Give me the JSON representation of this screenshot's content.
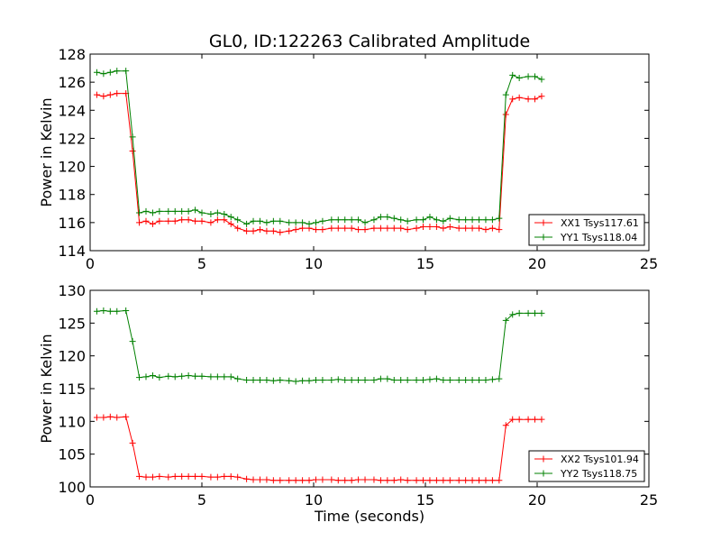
{
  "figure": {
    "title": "GL0, ID:122263 Calibrated Amplitude",
    "xlabel": "Time (seconds)"
  },
  "colors": {
    "xx": "#ff0000",
    "yy": "#008000"
  },
  "chart_data": [
    {
      "type": "line",
      "title": "GL0, ID:122263 Calibrated Amplitude",
      "xlabel": "",
      "ylabel": "Power in Kelvin",
      "xlim": [
        0,
        25
      ],
      "ylim": [
        114,
        128
      ],
      "xticks": [
        0,
        5,
        10,
        15,
        20,
        25
      ],
      "yticks": [
        114,
        116,
        118,
        120,
        122,
        124,
        126,
        128
      ],
      "grid": false,
      "legend_position": "lower-right",
      "x": [
        0.3,
        0.6,
        0.9,
        1.2,
        1.6,
        1.9,
        2.2,
        2.5,
        2.8,
        3.1,
        3.5,
        3.8,
        4.1,
        4.4,
        4.7,
        5.0,
        5.4,
        5.7,
        6.0,
        6.3,
        6.6,
        7.0,
        7.3,
        7.6,
        7.9,
        8.2,
        8.5,
        8.9,
        9.2,
        9.5,
        9.8,
        10.1,
        10.4,
        10.8,
        11.1,
        11.4,
        11.7,
        12.0,
        12.3,
        12.7,
        13.0,
        13.3,
        13.6,
        13.9,
        14.2,
        14.6,
        14.9,
        15.2,
        15.5,
        15.8,
        16.1,
        16.5,
        16.8,
        17.1,
        17.4,
        17.7,
        18.0,
        18.3,
        18.6,
        18.9,
        19.2,
        19.6,
        19.9,
        20.2
      ],
      "series": [
        {
          "name": "XX1 Tsys117.61",
          "color": "#ff0000",
          "values": [
            125.1,
            125.0,
            125.1,
            125.2,
            125.2,
            121.1,
            116.0,
            116.1,
            115.9,
            116.1,
            116.1,
            116.1,
            116.2,
            116.2,
            116.1,
            116.1,
            116.0,
            116.2,
            116.2,
            115.9,
            115.6,
            115.4,
            115.4,
            115.5,
            115.4,
            115.4,
            115.3,
            115.4,
            115.5,
            115.6,
            115.6,
            115.5,
            115.5,
            115.6,
            115.6,
            115.6,
            115.6,
            115.5,
            115.5,
            115.6,
            115.6,
            115.6,
            115.6,
            115.6,
            115.5,
            115.6,
            115.7,
            115.7,
            115.7,
            115.6,
            115.7,
            115.6,
            115.6,
            115.6,
            115.6,
            115.5,
            115.6,
            115.5,
            123.7,
            124.8,
            124.9,
            124.8,
            124.8,
            125.0
          ]
        },
        {
          "name": "YY1 Tsys118.04",
          "color": "#008000",
          "values": [
            126.7,
            126.6,
            126.7,
            126.8,
            126.8,
            122.1,
            116.7,
            116.8,
            116.7,
            116.8,
            116.8,
            116.8,
            116.8,
            116.8,
            116.9,
            116.7,
            116.6,
            116.7,
            116.6,
            116.4,
            116.2,
            115.9,
            116.1,
            116.1,
            116.0,
            116.1,
            116.1,
            116.0,
            116.0,
            116.0,
            115.9,
            116.0,
            116.1,
            116.2,
            116.2,
            116.2,
            116.2,
            116.2,
            116.0,
            116.2,
            116.4,
            116.4,
            116.3,
            116.2,
            116.1,
            116.2,
            116.2,
            116.4,
            116.2,
            116.1,
            116.3,
            116.2,
            116.2,
            116.2,
            116.2,
            116.2,
            116.2,
            116.3,
            125.1,
            126.5,
            126.3,
            126.4,
            126.4,
            126.2
          ]
        }
      ]
    },
    {
      "type": "line",
      "title": "",
      "xlabel": "Time (seconds)",
      "ylabel": "Power in Kelvin",
      "xlim": [
        0,
        25
      ],
      "ylim": [
        100,
        130
      ],
      "xticks": [
        0,
        5,
        10,
        15,
        20,
        25
      ],
      "yticks": [
        100,
        105,
        110,
        115,
        120,
        125,
        130
      ],
      "grid": false,
      "legend_position": "lower-right",
      "x": [
        0.3,
        0.6,
        0.9,
        1.2,
        1.6,
        1.9,
        2.2,
        2.5,
        2.8,
        3.1,
        3.5,
        3.8,
        4.1,
        4.4,
        4.7,
        5.0,
        5.4,
        5.7,
        6.0,
        6.3,
        6.6,
        7.0,
        7.3,
        7.6,
        7.9,
        8.2,
        8.5,
        8.9,
        9.2,
        9.5,
        9.8,
        10.1,
        10.4,
        10.8,
        11.1,
        11.4,
        11.7,
        12.0,
        12.3,
        12.7,
        13.0,
        13.3,
        13.6,
        13.9,
        14.2,
        14.6,
        14.9,
        15.2,
        15.5,
        15.8,
        16.1,
        16.5,
        16.8,
        17.1,
        17.4,
        17.7,
        18.0,
        18.3,
        18.6,
        18.9,
        19.2,
        19.6,
        19.9,
        20.2
      ],
      "series": [
        {
          "name": "XX2 Tsys101.94",
          "color": "#ff0000",
          "values": [
            110.6,
            110.6,
            110.7,
            110.6,
            110.7,
            106.7,
            101.6,
            101.5,
            101.5,
            101.6,
            101.5,
            101.6,
            101.6,
            101.6,
            101.6,
            101.6,
            101.5,
            101.5,
            101.6,
            101.6,
            101.5,
            101.2,
            101.1,
            101.1,
            101.1,
            101.0,
            101.0,
            101.0,
            101.0,
            101.0,
            101.0,
            101.1,
            101.1,
            101.1,
            101.0,
            101.0,
            101.0,
            101.1,
            101.1,
            101.1,
            101.0,
            101.0,
            101.0,
            101.1,
            101.0,
            101.0,
            101.0,
            101.0,
            101.0,
            101.0,
            101.0,
            101.0,
            101.0,
            101.0,
            101.0,
            101.0,
            101.0,
            101.0,
            109.4,
            110.3,
            110.3,
            110.3,
            110.3,
            110.3
          ]
        },
        {
          "name": "YY2 Tsys118.75",
          "color": "#008000",
          "values": [
            126.8,
            126.9,
            126.8,
            126.8,
            126.9,
            122.2,
            116.7,
            116.8,
            117.0,
            116.7,
            116.9,
            116.8,
            116.9,
            117.0,
            116.9,
            116.9,
            116.8,
            116.8,
            116.8,
            116.8,
            116.5,
            116.3,
            116.3,
            116.3,
            116.3,
            116.2,
            116.3,
            116.2,
            116.1,
            116.2,
            116.2,
            116.3,
            116.3,
            116.3,
            116.4,
            116.3,
            116.3,
            116.3,
            116.3,
            116.3,
            116.5,
            116.5,
            116.3,
            116.3,
            116.3,
            116.3,
            116.3,
            116.4,
            116.5,
            116.3,
            116.3,
            116.3,
            116.3,
            116.3,
            116.3,
            116.3,
            116.4,
            116.5,
            125.4,
            126.3,
            126.5,
            126.5,
            126.5,
            126.5
          ]
        }
      ]
    }
  ]
}
